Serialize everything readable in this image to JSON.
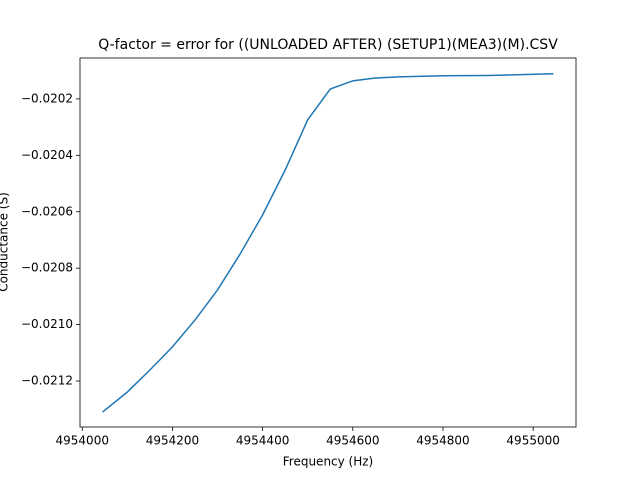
{
  "chart_data": {
    "type": "line",
    "title": "Q-factor = error for ((UNLOADED AFTER) (SETUP1)(MEA3)(M).CSV",
    "x_label": "Frequency (Hz)",
    "y_label": "Conductance (S)",
    "x": [
      4954045,
      4954100,
      4954150,
      4954200,
      4954250,
      4954300,
      4954350,
      4954400,
      4954450,
      4954500,
      4954550,
      4954600,
      4954650,
      4954700,
      4954800,
      4954900,
      4955045
    ],
    "series": [
      {
        "color": "#1f77b4",
        "values": [
          -0.02131,
          -0.021239,
          -0.021161,
          -0.021079,
          -0.020984,
          -0.020877,
          -0.02075,
          -0.020611,
          -0.020452,
          -0.020274,
          -0.020165,
          -0.020136,
          -0.020126,
          -0.020122,
          -0.020118,
          -0.020117,
          -0.020111
        ]
      }
    ],
    "xlim": [
      4953995,
      4955095
    ],
    "ylim": [
      -0.021363,
      -0.020055
    ],
    "xticks": [
      4954000,
      4954200,
      4954400,
      4954600,
      4954800,
      4955000
    ],
    "yticks": [
      {
        "value": -0.0202,
        "label": "−0.0202"
      },
      {
        "value": -0.0204,
        "label": "−0.0204"
      },
      {
        "value": -0.0206,
        "label": "−0.0206"
      },
      {
        "value": -0.0208,
        "label": "−0.0208"
      },
      {
        "value": -0.021,
        "label": "−0.0210"
      },
      {
        "value": -0.0212,
        "label": "−0.0212"
      }
    ]
  }
}
